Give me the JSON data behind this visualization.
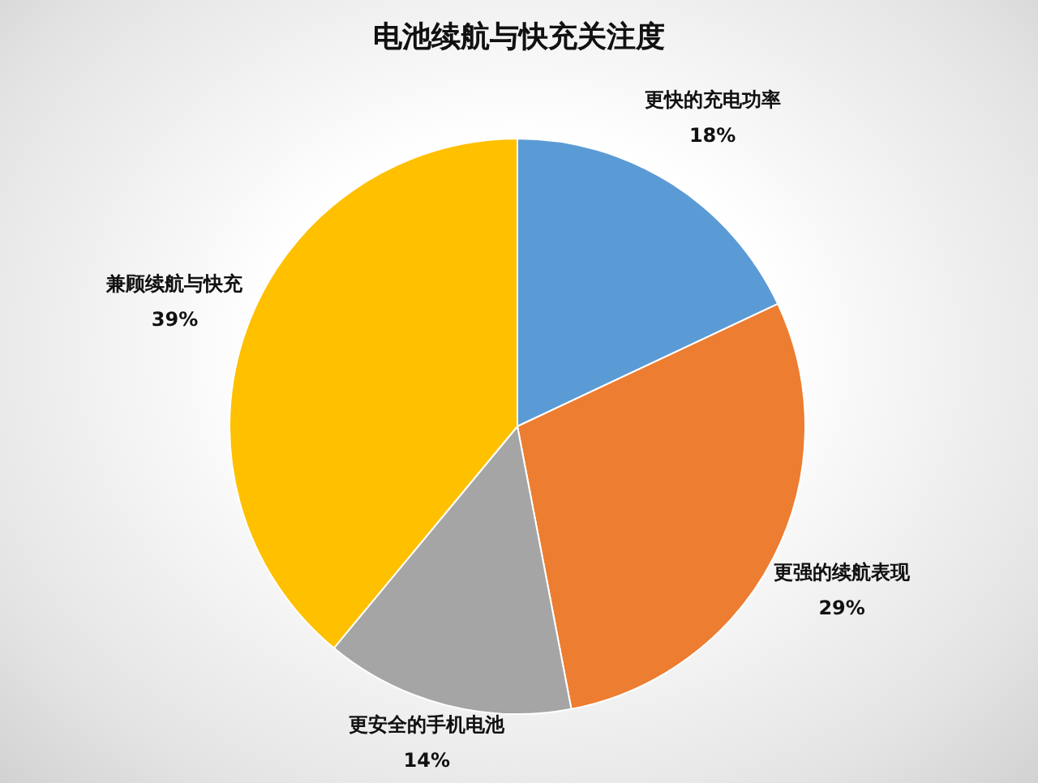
{
  "chart_data": {
    "type": "pie",
    "title": "电池续航与快充关注度",
    "categories": [
      "更快的充电功率",
      "更强的续航表现",
      "更安全的手机电池",
      "兼顾续航与快充"
    ],
    "values": [
      18,
      29,
      14,
      39
    ],
    "colors": [
      "#5b9bd5",
      "#ed7d31",
      "#a5a5a5",
      "#ffc000"
    ],
    "value_labels": [
      "18%",
      "29%",
      "14%",
      "39%"
    ]
  }
}
